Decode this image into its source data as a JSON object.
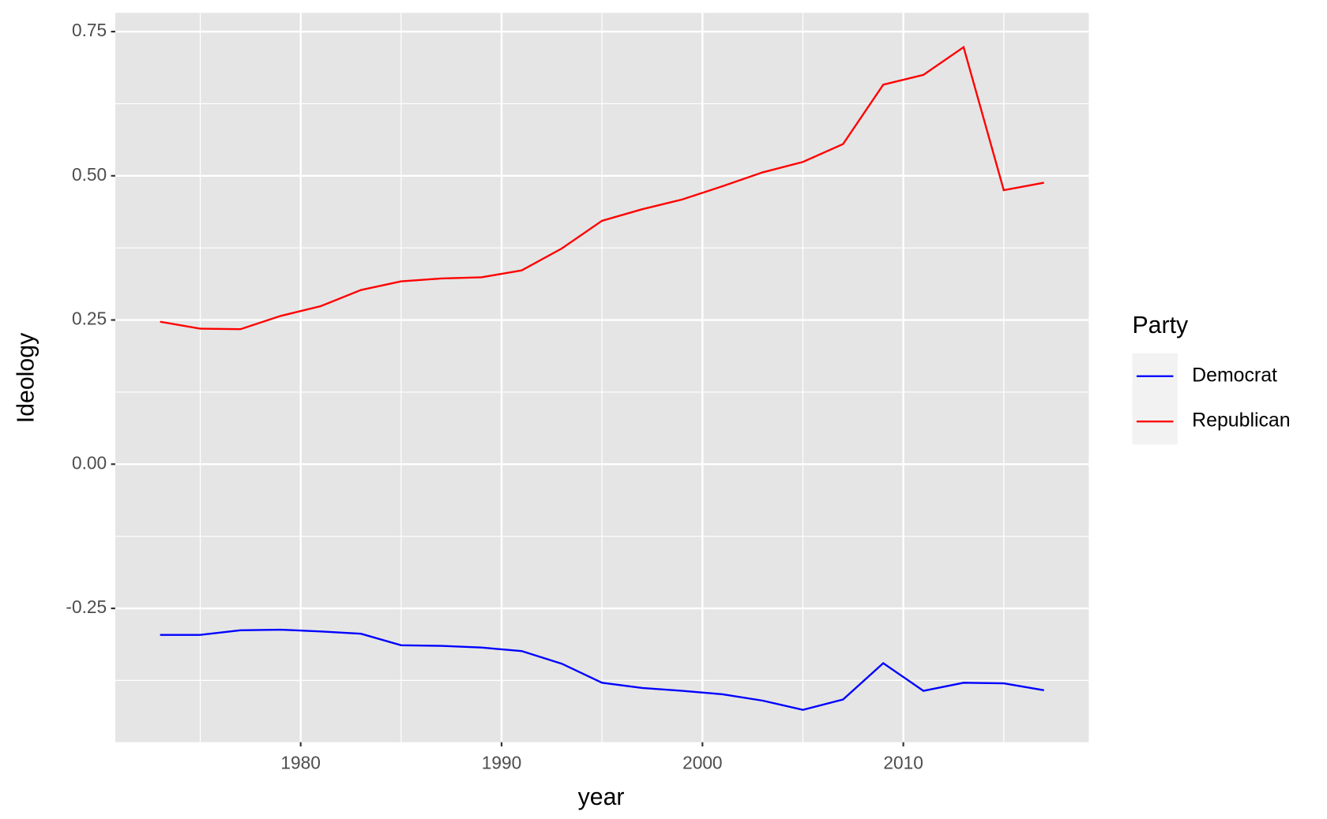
{
  "chart_data": {
    "type": "line",
    "x_label": "year",
    "y_label": "Ideology",
    "legend_title": "Party",
    "legend_position": "right",
    "grid": true,
    "x": [
      1973,
      1975,
      1977,
      1979,
      1981,
      1983,
      1985,
      1987,
      1989,
      1991,
      1993,
      1995,
      1997,
      1999,
      2001,
      2003,
      2005,
      2007,
      2009,
      2011,
      2013,
      2015,
      2017
    ],
    "series": [
      {
        "name": "Democrat",
        "color": "#0000ff",
        "values": [
          -0.296,
          -0.296,
          -0.288,
          -0.287,
          -0.29,
          -0.294,
          -0.314,
          -0.315,
          -0.318,
          -0.324,
          -0.346,
          -0.379,
          -0.388,
          -0.393,
          -0.399,
          -0.41,
          -0.426,
          -0.408,
          -0.345,
          -0.393,
          -0.379,
          -0.38,
          -0.392
        ]
      },
      {
        "name": "Republican",
        "color": "#ff0000",
        "values": [
          0.247,
          0.235,
          0.234,
          0.257,
          0.274,
          0.302,
          0.317,
          0.322,
          0.324,
          0.336,
          0.374,
          0.422,
          0.442,
          0.459,
          0.482,
          0.506,
          0.524,
          0.555,
          0.658,
          0.675,
          0.723,
          0.475,
          0.488
        ]
      }
    ],
    "xlim": [
      1970.77,
      2019.23
    ],
    "xticks": [
      1980,
      1990,
      2000,
      2010
    ],
    "ylim": [
      -0.482,
      0.7825
    ],
    "yticks": [
      {
        "value": -0.25,
        "label": "-0.25"
      },
      {
        "value": 0,
        "label": "0.00"
      },
      0.25,
      {
        "value": 0.5,
        "label": "0.50"
      },
      0.75
    ]
  }
}
